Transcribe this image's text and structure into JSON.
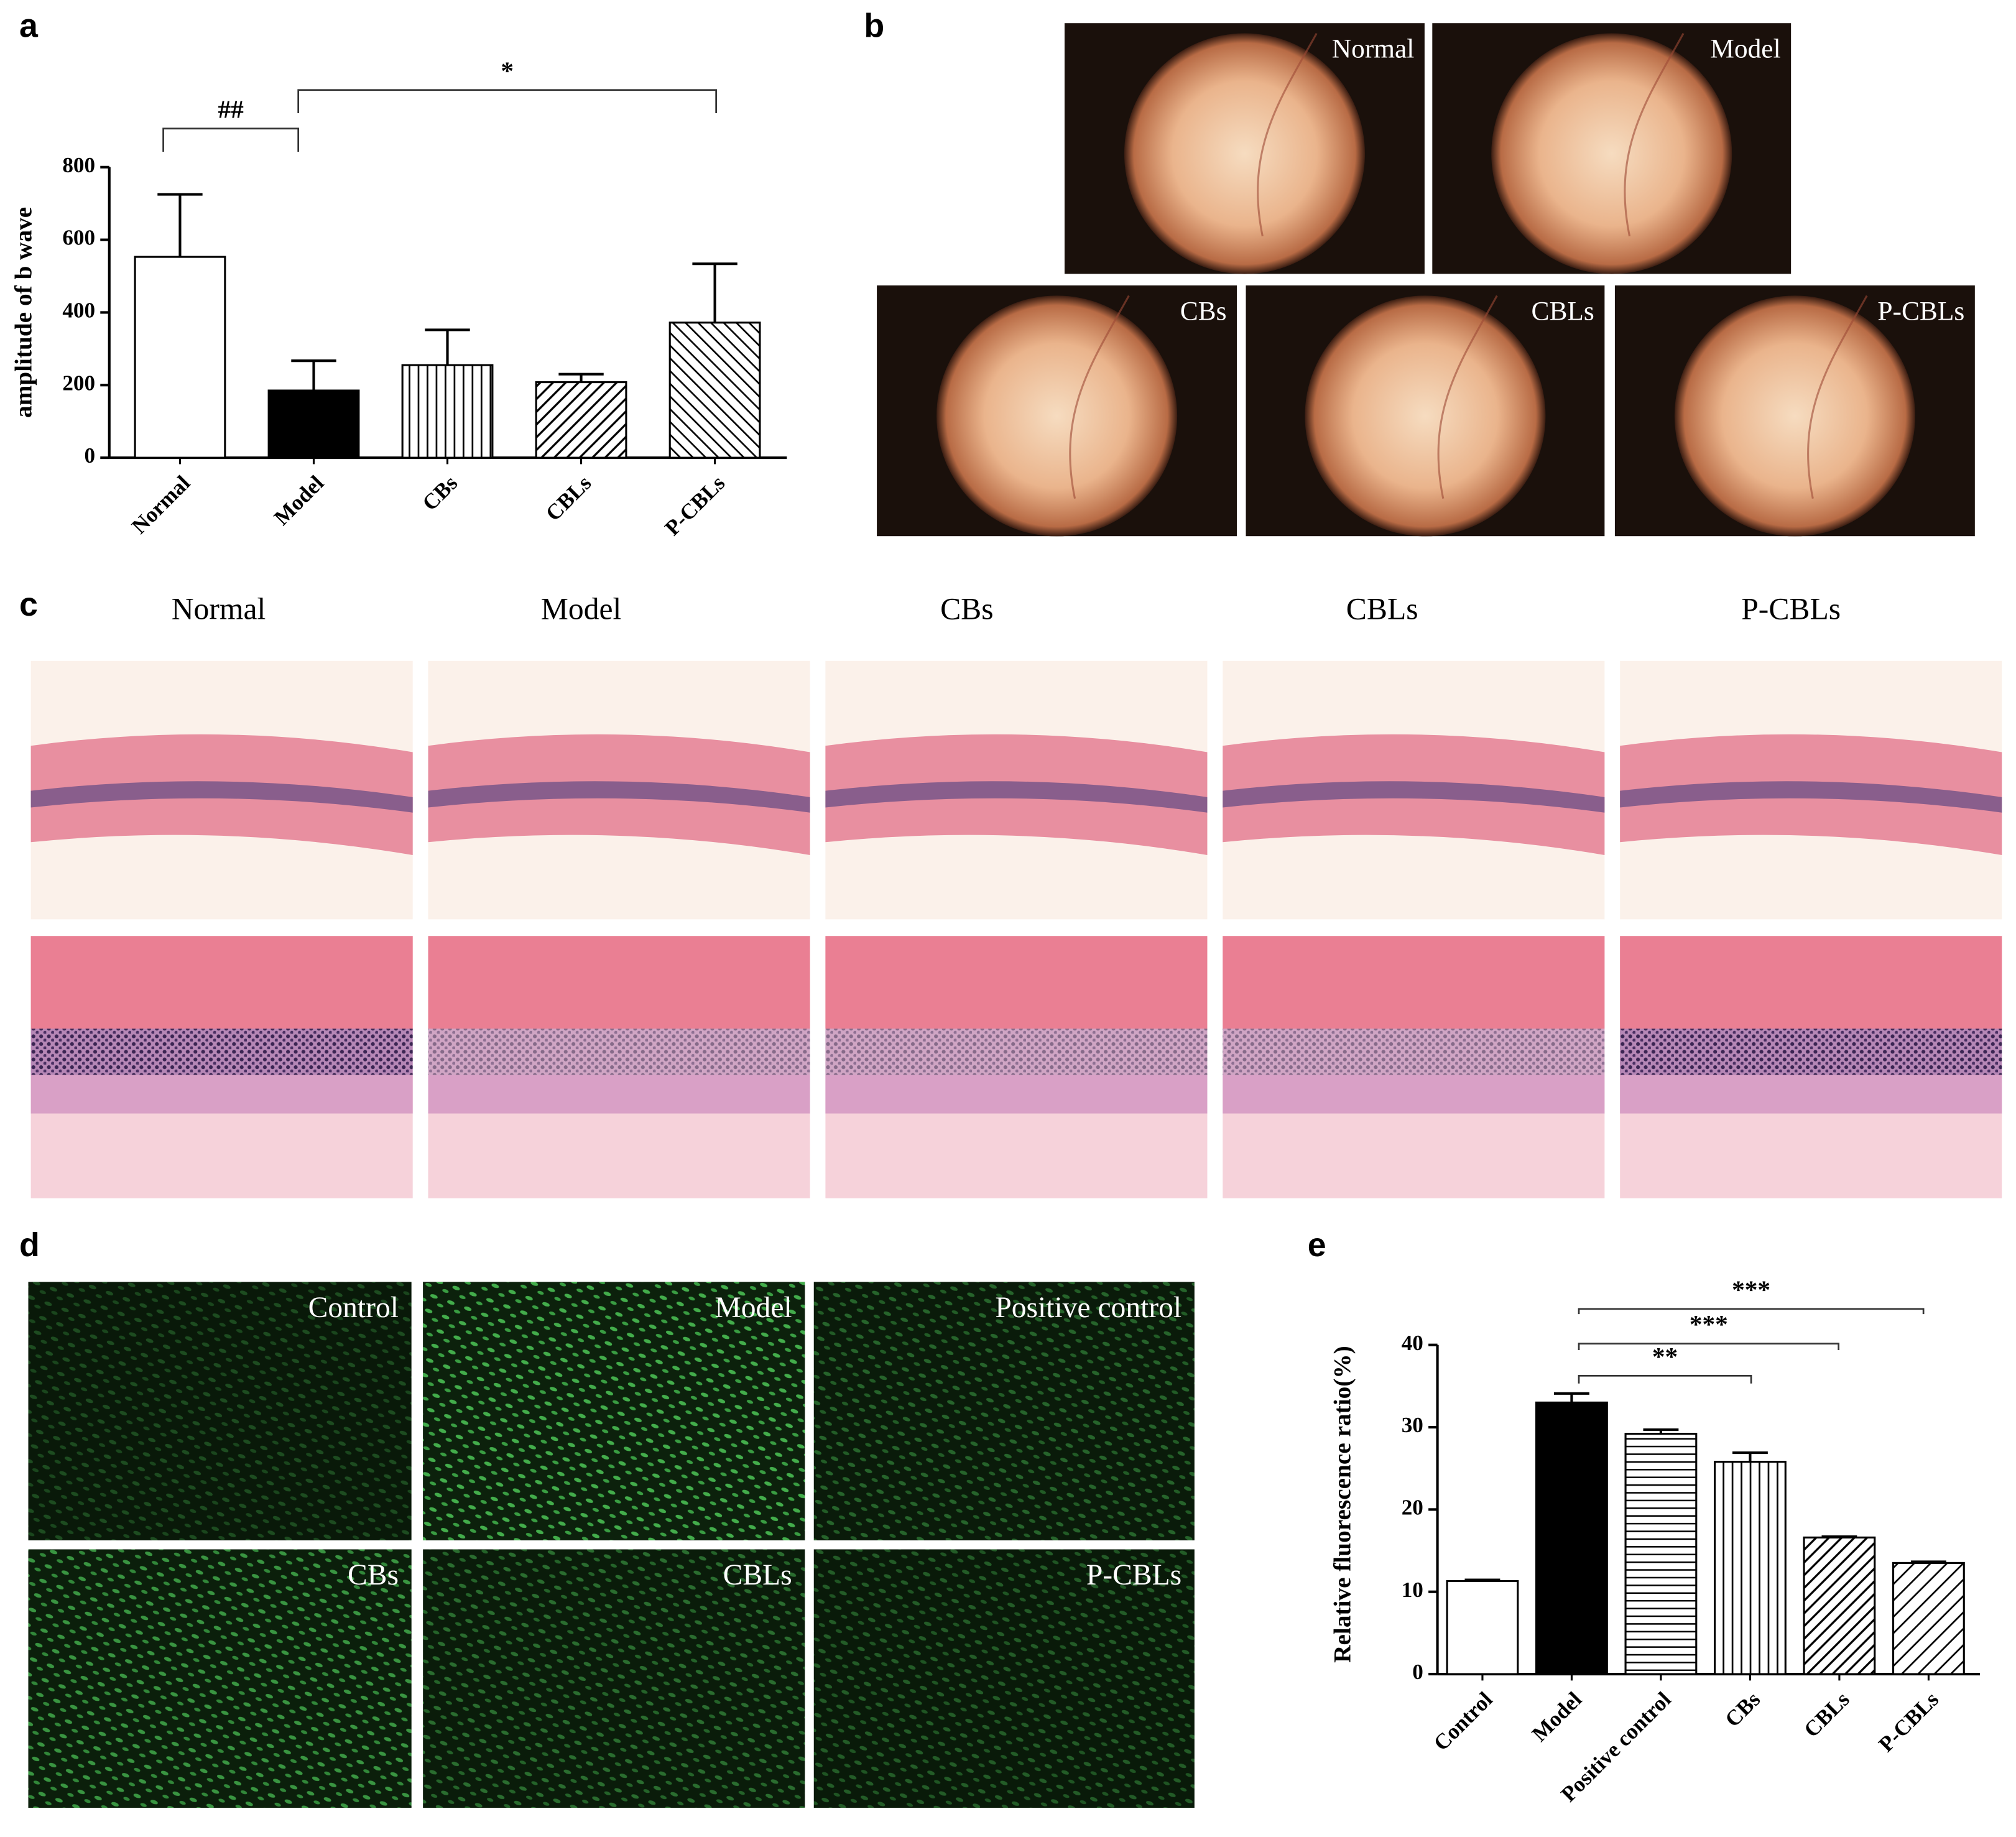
{
  "panel_labels": [
    "a",
    "b",
    "c",
    "d",
    "e"
  ],
  "chart_data": [
    {
      "type": "bar",
      "y_label": "amplitude of b wave",
      "categories": [
        "Normal",
        "Model",
        "CBs",
        "CBLs",
        "P-CBLs"
      ],
      "values": [
        553,
        185,
        255,
        208,
        372
      ],
      "errors": [
        172,
        82,
        97,
        22,
        162
      ],
      "ylim": [
        0,
        800
      ],
      "yticks": [
        0,
        200,
        400,
        600,
        800
      ],
      "annotations": [
        "##",
        "*"
      ],
      "color": "#000000"
    },
    {
      "type": "bar",
      "y_label": "Relative fluorescence ratio(%)",
      "categories": [
        "Control",
        "Model",
        "Positive control",
        "CBs",
        "CBLs",
        "P-CBLs"
      ],
      "values": [
        11.3,
        33,
        29.2,
        25.8,
        16.6,
        13.5
      ],
      "errors": [
        0.15,
        1.1,
        0.5,
        1.1,
        0.1,
        0.15
      ],
      "ylim": [
        0,
        40
      ],
      "yticks": [
        0,
        10,
        20,
        30,
        40
      ],
      "annotations": [
        "**",
        "***",
        "***"
      ],
      "color": "#000000"
    }
  ],
  "fundus": {
    "labels": [
      "Normal",
      "Model",
      "CBs",
      "CBLs",
      "P-CBLs"
    ]
  },
  "histology": {
    "column_titles": [
      "Normal",
      "Model",
      "CBs",
      "CBLs",
      "P-CBLs"
    ]
  },
  "fluorescence": {
    "labels": [
      "Control",
      "Model",
      "Positive control",
      "CBs",
      "CBLs",
      "P-CBLs"
    ]
  }
}
